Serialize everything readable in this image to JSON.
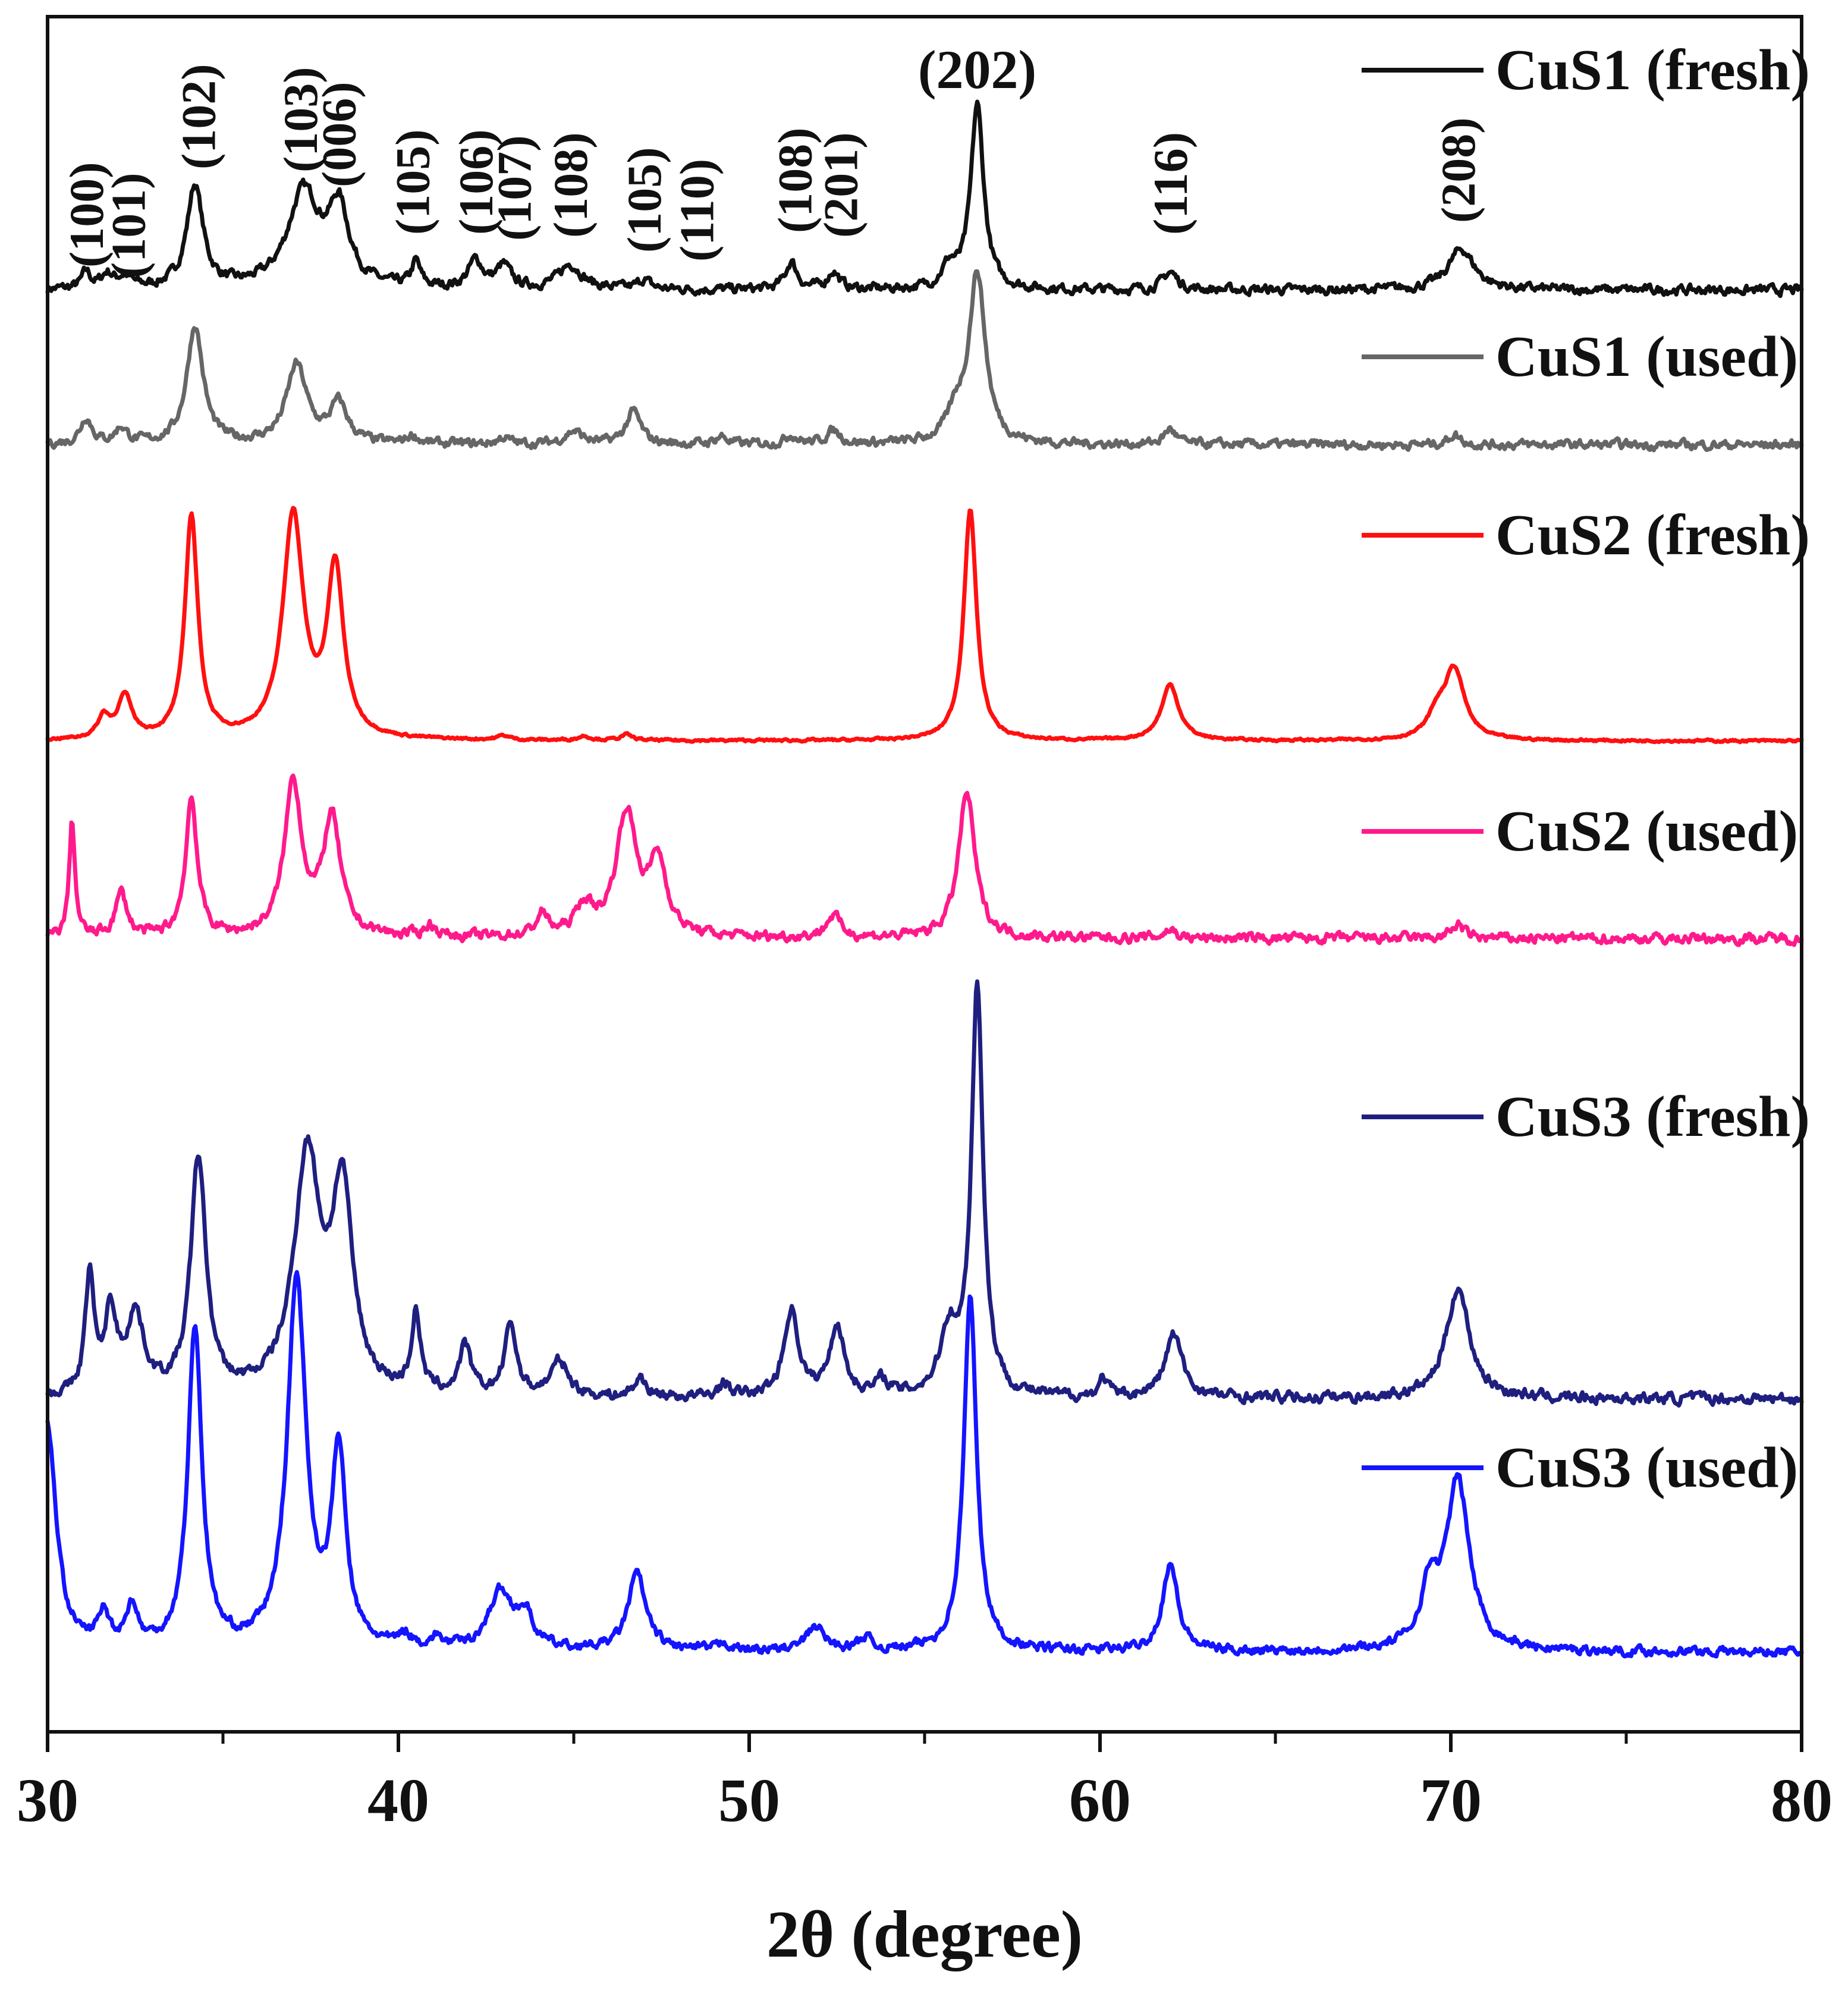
{
  "chart_data": {
    "type": "line",
    "title": "",
    "xlabel": "2θ (degree)",
    "ylabel": "",
    "xlim": [
      30,
      80
    ],
    "xticks": [
      "30",
      "40",
      "50",
      "60",
      "70",
      "80"
    ],
    "xtick_values": [
      30,
      40,
      50,
      60,
      70,
      80
    ],
    "minor_xtick_values": [
      35,
      45,
      55,
      65,
      75
    ],
    "units_note": "intensity in arbitrary units, each series plotted with a vertical offset; peaks given as [2θ, relative height above baseline, half-width]",
    "series": [
      {
        "name": "CuS1 (fresh)",
        "color": "#111111",
        "baseline": 0.0,
        "noise": 0.06,
        "peaks": [
          [
            31.1,
            0.12,
            0.15
          ],
          [
            31.7,
            0.1,
            0.2
          ],
          [
            32.2,
            0.08,
            0.25
          ],
          [
            34.2,
            0.75,
            0.28
          ],
          [
            37.3,
            0.7,
            0.55
          ],
          [
            38.3,
            0.55,
            0.35
          ],
          [
            40.5,
            0.18,
            0.15
          ],
          [
            42.2,
            0.2,
            0.25
          ],
          [
            43.0,
            0.16,
            0.25
          ],
          [
            44.9,
            0.18,
            0.4
          ],
          [
            47.0,
            0.07,
            0.2
          ],
          [
            51.2,
            0.2,
            0.2
          ],
          [
            52.4,
            0.13,
            0.2
          ],
          [
            55.7,
            0.15,
            0.25
          ],
          [
            56.5,
            1.35,
            0.22
          ],
          [
            62.0,
            0.13,
            0.25
          ],
          [
            70.3,
            0.3,
            0.45
          ]
        ]
      },
      {
        "name": "CuS1 (used)",
        "color": "#666666",
        "baseline": 0.0,
        "noise": 0.06,
        "peaks": [
          [
            31.1,
            0.2,
            0.2
          ],
          [
            32.1,
            0.12,
            0.2
          ],
          [
            34.2,
            0.9,
            0.28
          ],
          [
            37.1,
            0.6,
            0.35
          ],
          [
            38.3,
            0.3,
            0.3
          ],
          [
            40.4,
            0.06,
            0.2
          ],
          [
            43.0,
            0.05,
            0.2
          ],
          [
            45.0,
            0.1,
            0.3
          ],
          [
            46.7,
            0.25,
            0.25
          ],
          [
            49.2,
            0.06,
            0.2
          ],
          [
            51.2,
            0.07,
            0.2
          ],
          [
            52.4,
            0.1,
            0.25
          ],
          [
            55.9,
            0.2,
            0.3
          ],
          [
            56.5,
            1.3,
            0.28
          ],
          [
            62.0,
            0.12,
            0.2
          ],
          [
            70.1,
            0.08,
            0.2
          ]
        ]
      },
      {
        "name": "CuS2 (fresh)",
        "color": "#ff1010",
        "baseline": 0.0,
        "noise": 0.015,
        "peaks": [
          [
            31.6,
            0.15,
            0.2
          ],
          [
            32.2,
            0.3,
            0.25
          ],
          [
            34.1,
            1.6,
            0.22
          ],
          [
            37.0,
            1.6,
            0.35
          ],
          [
            38.2,
            1.2,
            0.28
          ],
          [
            43.0,
            0.03,
            0.2
          ],
          [
            45.3,
            0.03,
            0.2
          ],
          [
            46.5,
            0.04,
            0.2
          ],
          [
            56.3,
            1.65,
            0.22
          ],
          [
            62.0,
            0.4,
            0.3
          ],
          [
            69.6,
            0.15,
            0.3
          ],
          [
            70.1,
            0.5,
            0.35
          ]
        ]
      },
      {
        "name": "CuS2 (used)",
        "color": "#ff1a8c",
        "baseline": 0.0,
        "noise": 0.06,
        "peaks": [
          [
            30.7,
            0.8,
            0.1
          ],
          [
            32.1,
            0.3,
            0.2
          ],
          [
            34.1,
            0.95,
            0.2
          ],
          [
            37.0,
            1.05,
            0.3
          ],
          [
            38.1,
            0.8,
            0.3
          ],
          [
            40.9,
            0.08,
            0.2
          ],
          [
            44.1,
            0.15,
            0.2
          ],
          [
            45.3,
            0.2,
            0.3
          ],
          [
            46.5,
            0.85,
            0.35
          ],
          [
            47.4,
            0.5,
            0.3
          ],
          [
            52.4,
            0.15,
            0.25
          ],
          [
            56.2,
            1.0,
            0.28
          ],
          [
            62.0,
            0.06,
            0.2
          ],
          [
            70.2,
            0.1,
            0.2
          ]
        ]
      },
      {
        "name": "CuS3 (fresh)",
        "color": "#1f1f80",
        "baseline": 0.0,
        "noise": 0.06,
        "peaks": [
          [
            31.2,
            0.75,
            0.15
          ],
          [
            31.8,
            0.5,
            0.2
          ],
          [
            32.5,
            0.5,
            0.3
          ],
          [
            34.3,
            1.5,
            0.26
          ],
          [
            37.4,
            1.5,
            0.45
          ],
          [
            38.4,
            1.25,
            0.35
          ],
          [
            40.5,
            0.5,
            0.15
          ],
          [
            41.9,
            0.3,
            0.2
          ],
          [
            43.2,
            0.45,
            0.2
          ],
          [
            44.6,
            0.22,
            0.3
          ],
          [
            46.9,
            0.12,
            0.2
          ],
          [
            49.3,
            0.08,
            0.2
          ],
          [
            51.2,
            0.55,
            0.25
          ],
          [
            52.5,
            0.45,
            0.25
          ],
          [
            53.8,
            0.1,
            0.2
          ],
          [
            55.7,
            0.4,
            0.3
          ],
          [
            56.5,
            2.6,
            0.2
          ],
          [
            60.1,
            0.12,
            0.15
          ],
          [
            62.1,
            0.4,
            0.3
          ],
          [
            70.2,
            0.7,
            0.4
          ]
        ]
      },
      {
        "name": "CuS3 (used)",
        "color": "#1414ff",
        "baseline": 0.0,
        "noise": 0.05,
        "peaks": [
          [
            30.0,
            1.4,
            0.3
          ],
          [
            31.6,
            0.2,
            0.2
          ],
          [
            32.4,
            0.25,
            0.2
          ],
          [
            34.2,
            2.0,
            0.24
          ],
          [
            37.1,
            2.3,
            0.32
          ],
          [
            38.3,
            1.2,
            0.24
          ],
          [
            40.2,
            0.08,
            0.2
          ],
          [
            41.1,
            0.06,
            0.2
          ],
          [
            42.9,
            0.35,
            0.4
          ],
          [
            43.6,
            0.2,
            0.3
          ],
          [
            46.8,
            0.48,
            0.3
          ],
          [
            49.3,
            0.05,
            0.2
          ],
          [
            51.9,
            0.15,
            0.3
          ],
          [
            53.3,
            0.08,
            0.2
          ],
          [
            56.3,
            2.2,
            0.22
          ],
          [
            62.0,
            0.55,
            0.26
          ],
          [
            69.4,
            0.35,
            0.3
          ],
          [
            70.2,
            1.05,
            0.4
          ]
        ]
      }
    ],
    "legend": [
      {
        "label": "CuS1 (fresh)",
        "color": "#111111"
      },
      {
        "label": "CuS1 (used)",
        "color": "#666666"
      },
      {
        "label": "CuS2 (fresh)",
        "color": "#ff1010"
      },
      {
        "label": "CuS2 (used)",
        "color": "#ff1a8c"
      },
      {
        "label": "CuS3 (fresh)",
        "color": "#1f1f80"
      },
      {
        "label": "CuS3 (used)",
        "color": "#1414ff"
      }
    ],
    "legend_position": "right",
    "annotations": [
      {
        "text": "(100)",
        "x": 31.1
      },
      {
        "text": "(101)",
        "x": 32.3
      },
      {
        "text": "(102)",
        "x": 34.3
      },
      {
        "text": "(103)",
        "x": 37.2
      },
      {
        "text": "(006)",
        "x": 38.3
      },
      {
        "text": "(105)",
        "x": 40.4
      },
      {
        "text": "(106)",
        "x": 42.2
      },
      {
        "text": "(107)",
        "x": 43.3
      },
      {
        "text": "(108)",
        "x": 44.9
      },
      {
        "text": "(105)",
        "x": 47.0
      },
      {
        "text": "(110)",
        "x": 48.5
      },
      {
        "text": "(108)",
        "x": 51.3
      },
      {
        "text": "(201)",
        "x": 52.6
      },
      {
        "text": "(202)",
        "x": 56.5,
        "horizontal": true
      },
      {
        "text": "(116)",
        "x": 62.0
      },
      {
        "text": "(208)",
        "x": 70.2
      }
    ]
  }
}
